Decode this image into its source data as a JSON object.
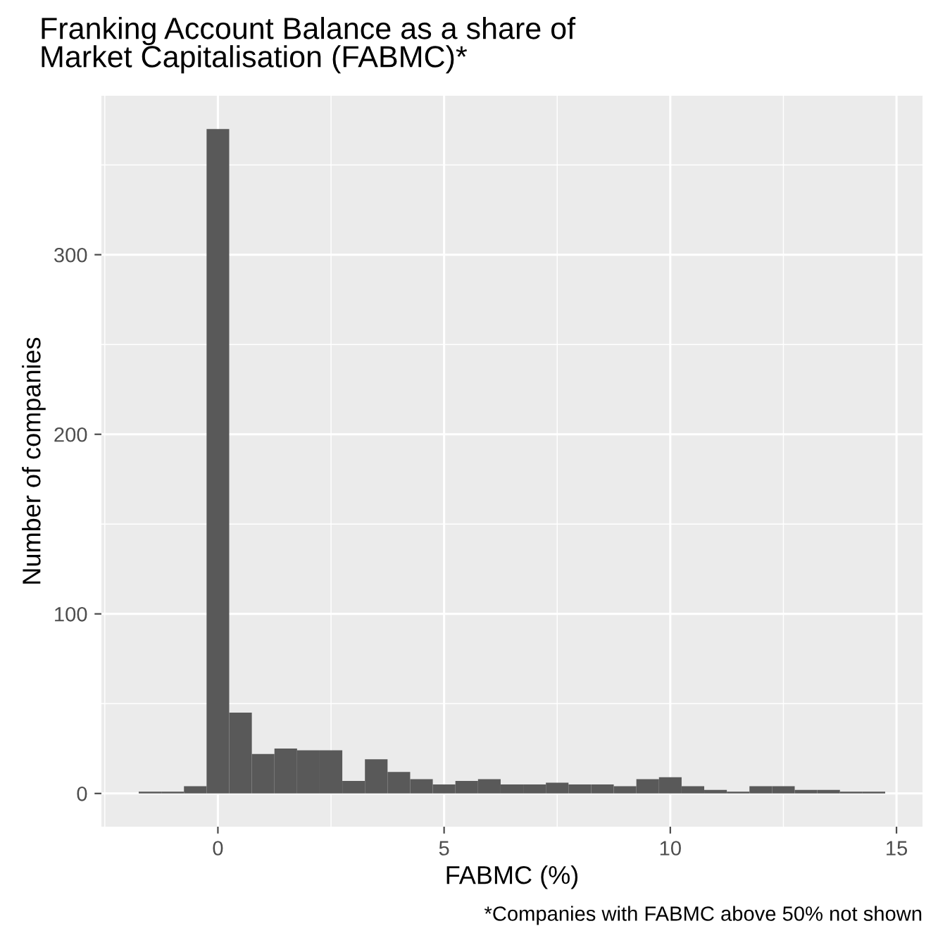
{
  "chart_data": {
    "type": "histogram",
    "title": "Franking Account Balance as a share of\nMarket Capitalisation (FABMC)*",
    "xlabel": "FABMC (%)",
    "ylabel": "Number of companies",
    "annotations": [
      "*Companies with FABMC above 50% not shown"
    ],
    "bins": [
      -1.75,
      -1.25,
      -0.75,
      -0.25,
      0.25,
      0.75,
      1.25,
      1.75,
      2.25,
      2.75,
      3.25,
      3.75,
      4.25,
      4.75,
      5.25,
      5.75,
      6.25,
      6.75,
      7.25,
      7.75,
      8.25,
      8.75,
      9.25,
      9.75,
      10.25,
      10.75,
      11.25,
      11.75,
      12.25,
      12.75,
      13.25,
      13.75,
      14.25,
      14.75
    ],
    "values": [
      1,
      1,
      4,
      370,
      45,
      22,
      25,
      24,
      24,
      7,
      19,
      12,
      8,
      5,
      7,
      8,
      5,
      5,
      6,
      5,
      5,
      4,
      8,
      9,
      4,
      2,
      1,
      4,
      4,
      2,
      2,
      1,
      1
    ],
    "color": "#595959",
    "xlim": [
      -2.575,
      15.575
    ],
    "xticks": [
      0,
      5,
      10,
      15
    ],
    "ylim": [
      -18.5,
      388.5
    ],
    "yticks": [
      0,
      100,
      200,
      300
    ],
    "grid": true
  }
}
